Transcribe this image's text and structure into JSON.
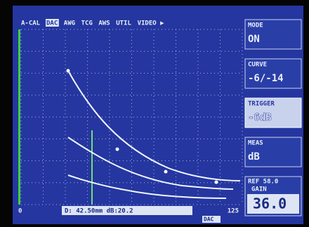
{
  "menu": {
    "items": [
      "A-CAL",
      "DAC",
      "AWG",
      "TCG",
      "AWS",
      "UTIL",
      "VIDEO ▶"
    ]
  },
  "panel": {
    "mode": {
      "label": "MODE",
      "value": "ON"
    },
    "curve": {
      "label": "CURVE",
      "value": "-6/-14"
    },
    "trigger": {
      "label": "TRIGGER",
      "value": "-6dB"
    },
    "meas": {
      "label": "MEAS",
      "value": "dB"
    },
    "ref": "REF 58.0",
    "gain": {
      "label": "GAIN",
      "value": "36.0"
    }
  },
  "footer": {
    "start": "0",
    "end": "125",
    "readout": "D: 42.50mm dB:20.2",
    "mode": "DAC"
  }
}
